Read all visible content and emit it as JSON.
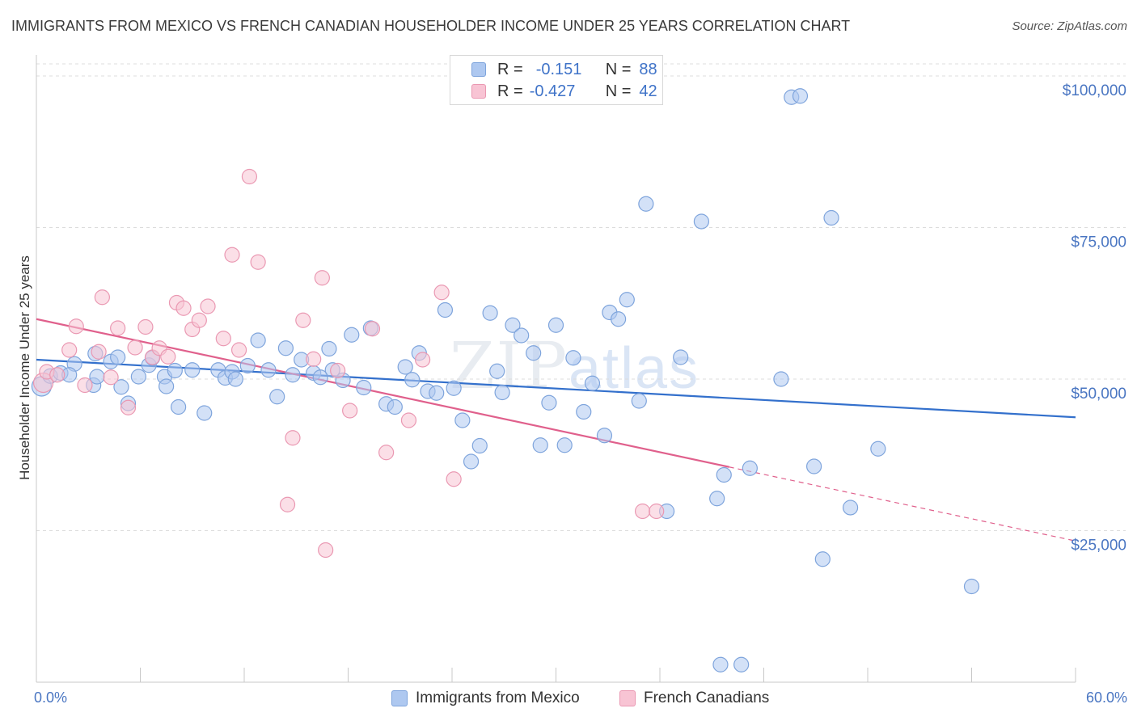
{
  "title": "IMMIGRANTS FROM MEXICO VS FRENCH CANADIAN HOUSEHOLDER INCOME UNDER 25 YEARS CORRELATION CHART",
  "source": "Source: ZipAtlas.com",
  "watermark": {
    "zip": "ZIP",
    "atlas": "atlas"
  },
  "legend": {
    "series1": {
      "r_label": "R =",
      "r_value": "-0.151",
      "n_label": "N =",
      "n_value": "88"
    },
    "series2": {
      "r_label": "R =",
      "r_value": "-0.427",
      "n_label": "N =",
      "n_value": "42"
    }
  },
  "colors": {
    "blue_fill": "#aec8f0",
    "blue_stroke": "#7ea4dc",
    "blue_line": "#3370cc",
    "pink_fill": "#f8c4d4",
    "pink_stroke": "#ea98b2",
    "pink_line": "#e0608c",
    "grid": "#dcdcdc",
    "tick_label": "#4a76c2"
  },
  "chart_data": {
    "type": "scatter",
    "ylabel": "Householder Income Under 25 years",
    "xlim": [
      0,
      60
    ],
    "ylim": [
      0,
      105000
    ],
    "x_tick_labels": [
      "0.0%",
      "60.0%"
    ],
    "y_ticks": [
      {
        "value": 25000,
        "label": "$25,000"
      },
      {
        "value": 50000,
        "label": "$50,000"
      },
      {
        "value": 75000,
        "label": "$75,000"
      },
      {
        "value": 100000,
        "label": "$100,000"
      }
    ],
    "grid": true,
    "legend_position": "bottom",
    "series": [
      {
        "name": "Immigrants from Mexico",
        "color": "blue",
        "trend": {
          "x": [
            0,
            60
          ],
          "y": [
            53200,
            43700
          ]
        },
        "points": [
          [
            0.3,
            48800
          ],
          [
            0.8,
            50500
          ],
          [
            1.4,
            51000
          ],
          [
            2.2,
            52500
          ],
          [
            3.3,
            49000
          ],
          [
            3.4,
            54200
          ],
          [
            3.5,
            50400
          ],
          [
            4.3,
            52900
          ],
          [
            4.7,
            53600
          ],
          [
            4.9,
            48700
          ],
          [
            5.3,
            46000
          ],
          [
            5.9,
            50400
          ],
          [
            6.5,
            52300
          ],
          [
            6.7,
            53500
          ],
          [
            7.4,
            50400
          ],
          [
            7.5,
            48800
          ],
          [
            8.0,
            51400
          ],
          [
            8.2,
            45400
          ],
          [
            9.0,
            51500
          ],
          [
            9.7,
            44400
          ],
          [
            10.5,
            51500
          ],
          [
            10.9,
            50200
          ],
          [
            11.3,
            51200
          ],
          [
            11.5,
            50000
          ],
          [
            12.2,
            52200
          ],
          [
            12.8,
            56400
          ],
          [
            13.4,
            51500
          ],
          [
            13.9,
            47100
          ],
          [
            14.4,
            55100
          ],
          [
            14.8,
            50700
          ],
          [
            15.3,
            53200
          ],
          [
            16.0,
            51000
          ],
          [
            16.4,
            50300
          ],
          [
            16.9,
            55000
          ],
          [
            17.1,
            51500
          ],
          [
            17.7,
            49800
          ],
          [
            18.2,
            57300
          ],
          [
            18.9,
            48600
          ],
          [
            19.3,
            58400
          ],
          [
            20.2,
            45900
          ],
          [
            20.7,
            45400
          ],
          [
            21.3,
            52000
          ],
          [
            21.7,
            49900
          ],
          [
            22.1,
            54300
          ],
          [
            22.6,
            48000
          ],
          [
            23.1,
            47700
          ],
          [
            23.6,
            61400
          ],
          [
            24.1,
            48500
          ],
          [
            24.6,
            43200
          ],
          [
            25.1,
            36400
          ],
          [
            25.6,
            39000
          ],
          [
            26.2,
            60900
          ],
          [
            26.6,
            51300
          ],
          [
            26.9,
            47800
          ],
          [
            27.5,
            58900
          ],
          [
            28.0,
            57200
          ],
          [
            28.7,
            54300
          ],
          [
            29.1,
            39100
          ],
          [
            29.6,
            46100
          ],
          [
            30.0,
            58900
          ],
          [
            30.5,
            39100
          ],
          [
            31.0,
            53500
          ],
          [
            31.6,
            44600
          ],
          [
            32.1,
            49300
          ],
          [
            32.8,
            40700
          ],
          [
            33.1,
            61000
          ],
          [
            33.6,
            59900
          ],
          [
            34.1,
            63100
          ],
          [
            34.8,
            46400
          ],
          [
            35.2,
            78900
          ],
          [
            36.4,
            28200
          ],
          [
            37.2,
            53600
          ],
          [
            38.4,
            76000
          ],
          [
            39.3,
            30300
          ],
          [
            39.7,
            34200
          ],
          [
            39.5,
            2900
          ],
          [
            40.7,
            2900
          ],
          [
            41.2,
            35300
          ],
          [
            43.0,
            50000
          ],
          [
            43.6,
            96500
          ],
          [
            44.1,
            96700
          ],
          [
            44.9,
            35600
          ],
          [
            45.9,
            76600
          ],
          [
            45.4,
            20300
          ],
          [
            47.0,
            28800
          ],
          [
            48.6,
            38500
          ],
          [
            54.0,
            15800
          ],
          [
            1.9,
            50700
          ]
        ]
      },
      {
        "name": "French Canadians",
        "color": "pink",
        "trend": {
          "x": [
            0,
            40
          ],
          "y": [
            59900,
            35500
          ]
        },
        "trend_dashed": {
          "x": [
            40,
            60
          ],
          "y": [
            35500,
            23300
          ]
        },
        "points": [
          [
            0.4,
            49400
          ],
          [
            0.6,
            51200
          ],
          [
            1.2,
            50700
          ],
          [
            1.9,
            54800
          ],
          [
            2.3,
            58700
          ],
          [
            2.8,
            49000
          ],
          [
            3.6,
            54500
          ],
          [
            3.8,
            63500
          ],
          [
            4.3,
            50300
          ],
          [
            4.7,
            58400
          ],
          [
            5.3,
            45300
          ],
          [
            5.7,
            55200
          ],
          [
            6.3,
            58600
          ],
          [
            6.7,
            53600
          ],
          [
            7.1,
            55100
          ],
          [
            7.6,
            53700
          ],
          [
            8.1,
            62600
          ],
          [
            8.5,
            61700
          ],
          [
            9.0,
            58200
          ],
          [
            9.4,
            59700
          ],
          [
            9.9,
            62000
          ],
          [
            10.8,
            56700
          ],
          [
            11.3,
            70500
          ],
          [
            11.7,
            54800
          ],
          [
            12.3,
            83400
          ],
          [
            12.8,
            69300
          ],
          [
            14.5,
            29300
          ],
          [
            14.8,
            40300
          ],
          [
            15.4,
            59700
          ],
          [
            16.0,
            53300
          ],
          [
            16.5,
            66700
          ],
          [
            16.7,
            21800
          ],
          [
            17.4,
            51400
          ],
          [
            18.1,
            44800
          ],
          [
            19.4,
            58300
          ],
          [
            20.2,
            37900
          ],
          [
            21.5,
            43200
          ],
          [
            22.3,
            53200
          ],
          [
            23.4,
            64300
          ],
          [
            24.1,
            33500
          ],
          [
            35.0,
            28200
          ],
          [
            35.8,
            28200
          ]
        ]
      }
    ]
  }
}
